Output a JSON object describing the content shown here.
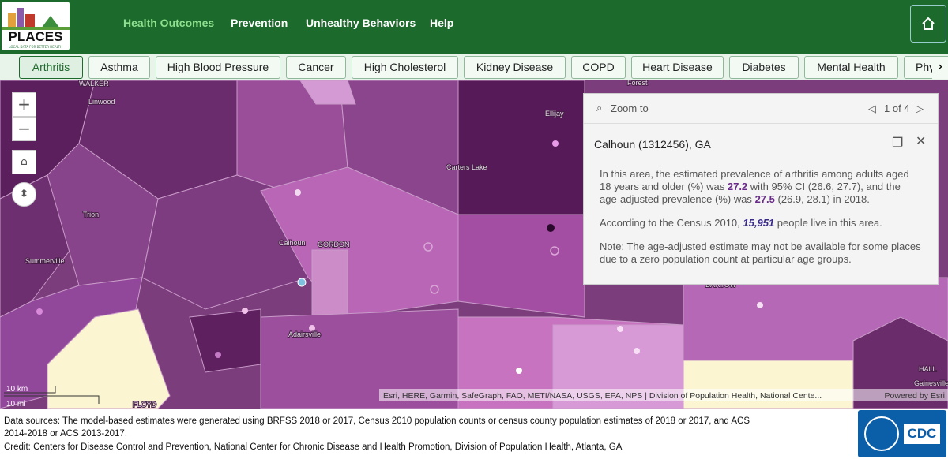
{
  "header": {
    "logo_title": "PLACES",
    "logo_tagline": "LOCAL DATA FOR BETTER HEALTH",
    "nav": [
      "Health Outcomes",
      "Prevention",
      "Unhealthy Behaviors",
      "Help"
    ]
  },
  "tabs": [
    "Arthritis",
    "Asthma",
    "High Blood Pressure",
    "Cancer",
    "High Cholesterol",
    "Kidney Disease",
    "COPD",
    "Heart Disease",
    "Diabetes",
    "Mental Health",
    "Phy"
  ],
  "map": {
    "labels": [
      "WALKER",
      "Linwood",
      "Ellijay",
      "Forest",
      "Carters Lake",
      "Trion",
      "Summerville",
      "Calhoun",
      "GORDON",
      "Adairsville",
      "BARTOW",
      "Gainesville",
      "HALL",
      "FLOYD"
    ],
    "scale": [
      "10 km",
      "10 mi"
    ],
    "attribution": "Esri, HERE, Garmin, SafeGraph, FAO, METI/NASA, USGS, EPA, NPS | Division of Population Health, National Cente...",
    "powered_by": "Powered by Esri"
  },
  "popup": {
    "zoom": "Zoom to",
    "pager": "1 of 4",
    "title": "Calhoun (1312456), GA",
    "p1": [
      "In this area, the estimated prevalence of arthritis among adults aged 18 years and older (%) was ",
      "27.2",
      " with 95% CI (26.6, 27.7), and the age-adjusted prevalence (%) was ",
      "27.5",
      " (26.9, 28.1) in 2018."
    ],
    "p2": [
      "According to the Census 2010, ",
      "15,951",
      " people live in this area."
    ],
    "p3": "Note: The age-adjusted estimate may not be available for some places due to a zero population count at particular age groups."
  },
  "footer": {
    "sources": "Data sources: The model-based estimates were generated using BRFSS 2018 or 2017, Census 2010 population counts or census county population estimates of 2018 or 2017, and ACS 2014-2018 or ACS 2013-2017.",
    "credit": "Credit: Centers for Disease Control and Prevention, National Center for Chronic Disease and Health Promotion, Division of Population Health, Atlanta, GA",
    "logo": "CDC"
  }
}
